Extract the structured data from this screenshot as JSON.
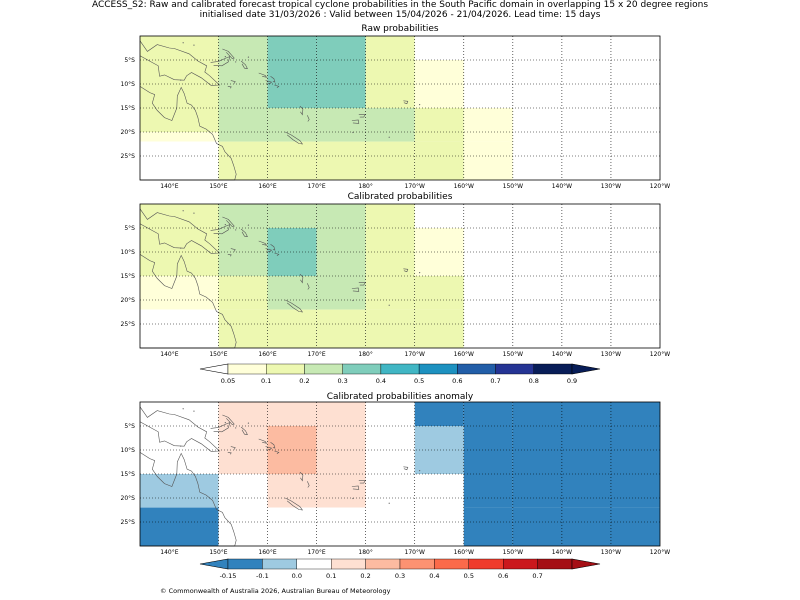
{
  "header": {
    "line1": "ACCESS_S2: Raw and calibrated forecast tropical cyclone probabilities in the South Pacific domain in overlapping 15 x 20 degree regions",
    "line2": "initialised date 31/03/2026 :  Valid between 15/04/2026 - 21/04/2026. Lead time: 15 days"
  },
  "panels": [
    {
      "title": "Raw probabilities"
    },
    {
      "title": "Calibrated probabilities"
    },
    {
      "title": "Calibrated probabilities anomaly"
    }
  ],
  "lon_ticks": [
    "140°E",
    "150°E",
    "160°E",
    "170°E",
    "180°",
    "170°W",
    "160°W",
    "150°W",
    "140°W",
    "130°W",
    "120°W"
  ],
  "lat_ticks": [
    "5°S",
    "10°S",
    "15°S",
    "20°S",
    "25°S"
  ],
  "colorbar_prob": {
    "ticks": [
      "0.05",
      "0.1",
      "0.2",
      "0.3",
      "0.4",
      "0.5",
      "0.6",
      "0.7",
      "0.8",
      "0.9"
    ],
    "colors": [
      "#ffffd9",
      "#edf8b1",
      "#c7e9b4",
      "#7fcdbb",
      "#41b6c4",
      "#1d91c0",
      "#225ea8",
      "#253494",
      "#081d58"
    ]
  },
  "colorbar_anom": {
    "ticks": [
      "-0.15",
      "-0.1",
      "0.0",
      "0.1",
      "0.2",
      "0.3",
      "0.4",
      "0.5",
      "0.6",
      "0.7"
    ],
    "colors": [
      "#3182bd",
      "#9ecae1",
      "#ffffff",
      "#fee0d2",
      "#fcbba1",
      "#fc9272",
      "#fb6a4a",
      "#ef3b2c",
      "#cb181d",
      "#a50f15"
    ]
  },
  "map_grids": {
    "lon_edges": [
      134,
      150,
      160,
      170,
      180,
      190,
      200,
      210,
      240
    ],
    "lat_edges": [
      0,
      5,
      10,
      15,
      20,
      22,
      30
    ],
    "raw": [
      [
        "#edf8b1",
        "#c7e9b4",
        "#7fcdbb",
        "#7fcdbb",
        "#edf8b1",
        "#ffffff",
        "#ffffff",
        "#ffffff"
      ],
      [
        "#edf8b1",
        "#c7e9b4",
        "#7fcdbb",
        "#7fcdbb",
        "#edf8b1",
        "#ffffd9",
        "#ffffff",
        "#ffffff"
      ],
      [
        "#edf8b1",
        "#c7e9b4",
        "#7fcdbb",
        "#7fcdbb",
        "#edf8b1",
        "#ffffd9",
        "#ffffff",
        "#ffffff"
      ],
      [
        "#edf8b1",
        "#c7e9b4",
        "#c7e9b4",
        "#c7e9b4",
        "#c7e9b4",
        "#edf8b1",
        "#ffffd9",
        "#ffffff"
      ],
      [
        "#ffffd9",
        "#c7e9b4",
        "#c7e9b4",
        "#c7e9b4",
        "#c7e9b4",
        "#edf8b1",
        "#ffffd9",
        "#ffffff"
      ],
      [
        "#ffffff",
        "#edf8b1",
        "#edf8b1",
        "#edf8b1",
        "#edf8b1",
        "#edf8b1",
        "#ffffd9",
        "#ffffff"
      ]
    ],
    "calibrated": [
      [
        "#edf8b1",
        "#c7e9b4",
        "#c7e9b4",
        "#c7e9b4",
        "#edf8b1",
        "#ffffff",
        "#ffffff",
        "#ffffff"
      ],
      [
        "#edf8b1",
        "#c7e9b4",
        "#7fcdbb",
        "#c7e9b4",
        "#edf8b1",
        "#ffffd9",
        "#ffffff",
        "#ffffff"
      ],
      [
        "#edf8b1",
        "#c7e9b4",
        "#7fcdbb",
        "#c7e9b4",
        "#edf8b1",
        "#ffffd9",
        "#ffffff",
        "#ffffff"
      ],
      [
        "#ffffd9",
        "#edf8b1",
        "#c7e9b4",
        "#c7e9b4",
        "#edf8b1",
        "#edf8b1",
        "#ffffff",
        "#ffffff"
      ],
      [
        "#ffffd9",
        "#edf8b1",
        "#c7e9b4",
        "#c7e9b4",
        "#edf8b1",
        "#edf8b1",
        "#ffffff",
        "#ffffff"
      ],
      [
        "#ffffff",
        "#edf8b1",
        "#edf8b1",
        "#edf8b1",
        "#edf8b1",
        "#edf8b1",
        "#ffffff",
        "#ffffff"
      ]
    ],
    "anomaly": [
      [
        "#ffffff",
        "#fee0d2",
        "#fee0d2",
        "#fee0d2",
        "#ffffff",
        "#3182bd",
        "#3182bd",
        "#3182bd"
      ],
      [
        "#ffffff",
        "#fee0d2",
        "#fcbba1",
        "#fee0d2",
        "#ffffff",
        "#9ecae1",
        "#3182bd",
        "#3182bd"
      ],
      [
        "#ffffff",
        "#fee0d2",
        "#fcbba1",
        "#fee0d2",
        "#ffffff",
        "#9ecae1",
        "#3182bd",
        "#3182bd"
      ],
      [
        "#9ecae1",
        "#ffffff",
        "#fee0d2",
        "#fee0d2",
        "#ffffff",
        "#ffffff",
        "#3182bd",
        "#3182bd"
      ],
      [
        "#9ecae1",
        "#ffffff",
        "#fee0d2",
        "#fee0d2",
        "#ffffff",
        "#ffffff",
        "#3182bd",
        "#3182bd"
      ],
      [
        "#3182bd",
        "#ffffff",
        "#ffffff",
        "#ffffff",
        "#ffffff",
        "#ffffff",
        "#3182bd",
        "#3182bd"
      ]
    ]
  },
  "copyright": "© Commonwealth of Australia 2026, Australian Bureau of Meteorology"
}
